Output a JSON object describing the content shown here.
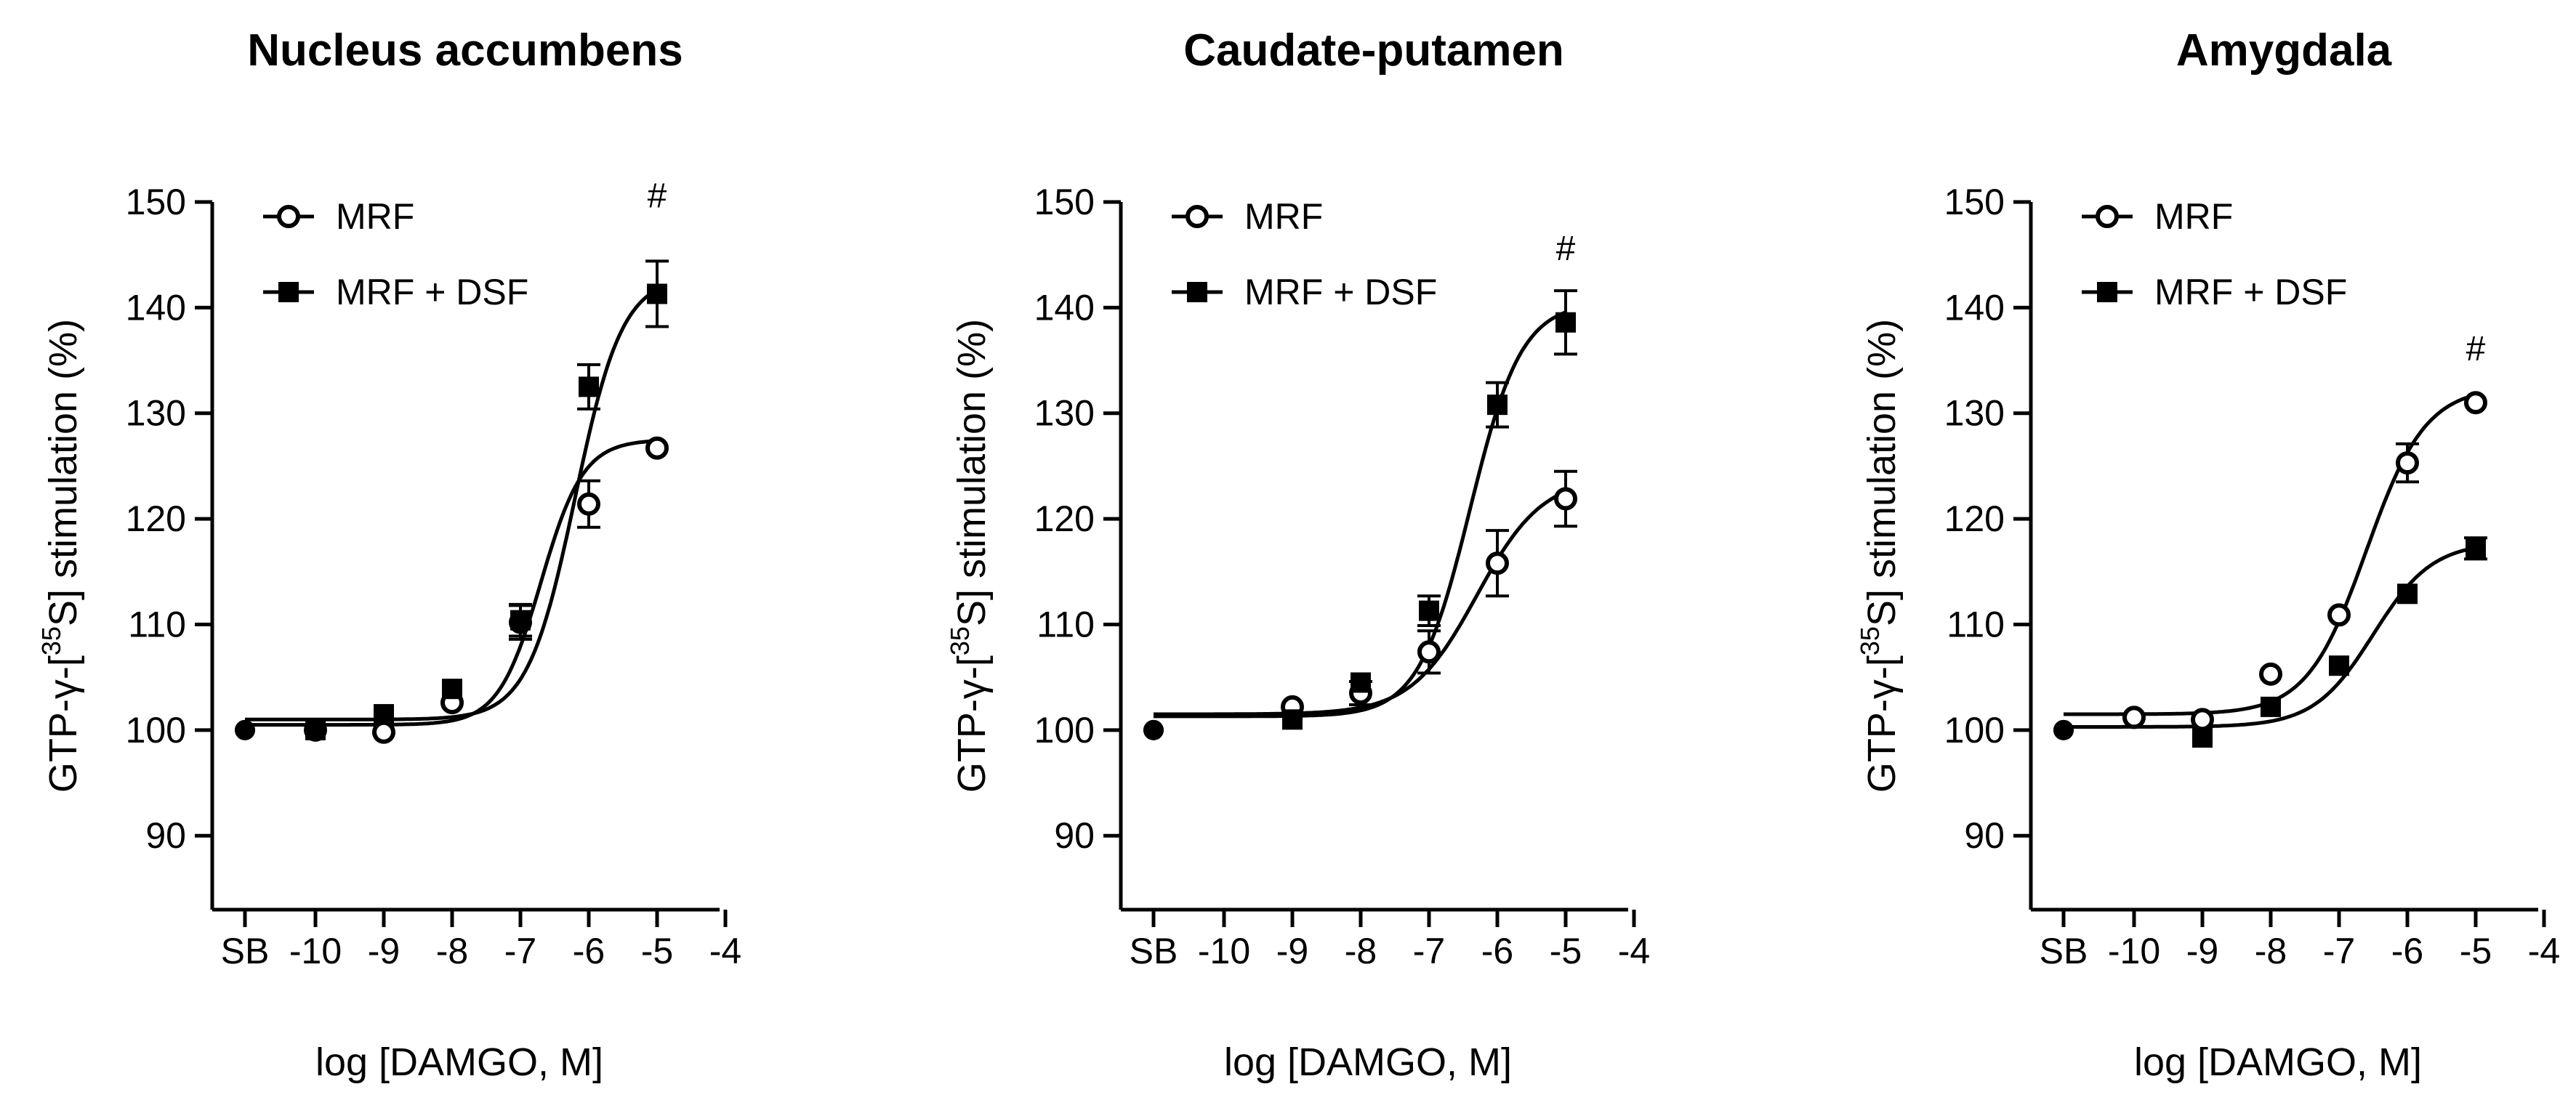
{
  "chart_data": [
    {
      "type": "scatter",
      "title": "Nucleus accumbens",
      "xlabel": "log [DAMGO, M]",
      "ylabel": "GTP-γ-[35S] stimulation (%)",
      "ylabel_parts": {
        "pre": "GTP-γ-[",
        "sup": "35",
        "post": "S] stimulation (%)"
      },
      "xlim": [
        -11.2,
        -4
      ],
      "ylim": [
        83,
        150
      ],
      "x_tick_labels": [
        "SB",
        "-10",
        "-9",
        "-8",
        "-7",
        "-6",
        "-5",
        "-4"
      ],
      "y_tick_labels": [
        "90",
        "100",
        "110",
        "120",
        "130",
        "140",
        "150"
      ],
      "annotation": {
        "text": "#",
        "x": -5,
        "y": 149.5
      },
      "legend": {
        "position": "top-left"
      },
      "series": [
        {
          "name": "MRF",
          "marker": "open-circle",
          "x": [
            "SB",
            -10,
            -9,
            -8,
            -7,
            -6,
            -5
          ],
          "y": [
            100.0,
            100.0,
            99.8,
            102.6,
            110.2,
            121.4,
            126.7
          ],
          "err": [
            0.4,
            0.4,
            0.5,
            0.6,
            1.6,
            2.2,
            0.5
          ],
          "fit": {
            "bottom": 100.5,
            "top": 127.5,
            "logEC50": -6.7,
            "hill": 1.4
          }
        },
        {
          "name": "MRF + DSF",
          "marker": "filled-square",
          "x": [
            "SB",
            -10,
            -9,
            -8,
            -7,
            -6,
            -5
          ],
          "y": [
            100.0,
            100.0,
            101.5,
            103.9,
            110.4,
            132.5,
            141.3
          ],
          "err": [
            0.4,
            0.4,
            0.6,
            0.6,
            1.5,
            2.1,
            3.1
          ],
          "fit": {
            "bottom": 101.0,
            "top": 143.0,
            "logEC50": -6.2,
            "hill": 1.25
          }
        }
      ]
    },
    {
      "type": "scatter",
      "title": "Caudate-putamen",
      "xlabel": "log [DAMGO, M]",
      "ylabel": "GTP-γ-[35S] stimulation (%)",
      "ylabel_parts": {
        "pre": "GTP-γ-[",
        "sup": "35",
        "post": "S] stimulation (%)"
      },
      "xlim": [
        -11.2,
        -4
      ],
      "ylim": [
        83,
        150
      ],
      "x_tick_labels": [
        "SB",
        "-10",
        "-9",
        "-8",
        "-7",
        "-6",
        "-5",
        "-4"
      ],
      "y_tick_labels": [
        "90",
        "100",
        "110",
        "120",
        "130",
        "140",
        "150"
      ],
      "annotation": {
        "text": "#",
        "x": -5,
        "y": 144.5
      },
      "legend": {
        "position": "top-left"
      },
      "series": [
        {
          "name": "MRF",
          "marker": "open-circle",
          "x": [
            "SB",
            -9,
            -8,
            -7,
            -6,
            -5
          ],
          "y": [
            100.0,
            102.2,
            103.5,
            107.4,
            115.8,
            121.9
          ],
          "err": [
            0.4,
            0.4,
            1.1,
            2.0,
            3.1,
            2.6
          ],
          "fit": {
            "bottom": 101.5,
            "top": 124.0,
            "logEC50": -6.3,
            "hill": 0.9
          }
        },
        {
          "name": "MRF + DSF",
          "marker": "filled-square",
          "x": [
            "SB",
            -9,
            -8,
            -7,
            -6,
            -5
          ],
          "y": [
            100.0,
            101.0,
            104.5,
            111.3,
            130.8,
            138.6
          ],
          "err": [
            0.4,
            0.5,
            0.7,
            1.4,
            2.1,
            3.0
          ],
          "fit": {
            "bottom": 101.3,
            "top": 140.5,
            "logEC50": -6.4,
            "hill": 1.15
          }
        }
      ]
    },
    {
      "type": "scatter",
      "title": "Amygdala",
      "xlabel": "log [DAMGO, M]",
      "ylabel": "GTP-γ-[35S] stimulation (%)",
      "ylabel_parts": {
        "pre": "GTP-γ-[",
        "sup": "35",
        "post": "S] stimulation (%)"
      },
      "xlim": [
        -11.2,
        -4
      ],
      "ylim": [
        83,
        150
      ],
      "x_tick_labels": [
        "SB",
        "-10",
        "-9",
        "-8",
        "-7",
        "-6",
        "-5",
        "-4"
      ],
      "y_tick_labels": [
        "90",
        "100",
        "110",
        "120",
        "130",
        "140",
        "150"
      ],
      "annotation": {
        "text": "#",
        "x": -5,
        "y": 135
      },
      "legend": {
        "position": "top-left"
      },
      "series": [
        {
          "name": "MRF",
          "marker": "open-circle",
          "x": [
            "SB",
            -10,
            -9,
            -8,
            -7,
            -6,
            -5
          ],
          "y": [
            100.0,
            101.2,
            101.0,
            105.3,
            110.9,
            125.3,
            131.0
          ],
          "err": [
            0.4,
            0.4,
            0.4,
            0.5,
            0.6,
            1.8,
            0.6
          ],
          "fit": {
            "bottom": 101.5,
            "top": 132.5,
            "logEC50": -6.6,
            "hill": 1.0
          }
        },
        {
          "name": "MRF + DSF",
          "marker": "filled-square",
          "x": [
            "SB",
            -9,
            -8,
            -7,
            -6,
            -5
          ],
          "y": [
            100.0,
            99.3,
            102.2,
            106.1,
            112.9,
            117.2
          ],
          "err": [
            0.4,
            0.4,
            0.4,
            0.5,
            0.6,
            1.0
          ],
          "fit": {
            "bottom": 100.3,
            "top": 117.8,
            "logEC50": -6.5,
            "hill": 1.0
          }
        }
      ]
    }
  ]
}
